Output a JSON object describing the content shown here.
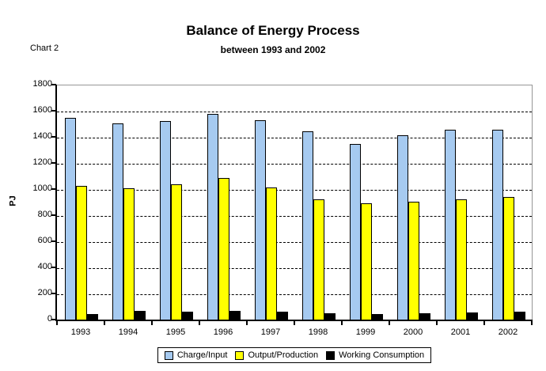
{
  "header": {
    "chart_label": "Chart 2",
    "title": "Balance of Energy Process",
    "subtitle": "between 1993 and 2002"
  },
  "chart_data": {
    "type": "bar",
    "title": "Balance of Energy Process",
    "subtitle": "between 1993 and 2002",
    "xlabel": "",
    "ylabel": "PJ",
    "ylim": [
      0,
      1800
    ],
    "ytick_step": 200,
    "grid": "horizontal-dashed",
    "legend_position": "bottom",
    "plot_frame_color": "#969696",
    "categories": [
      "1993",
      "1994",
      "1995",
      "1996",
      "1997",
      "1998",
      "1999",
      "2000",
      "2001",
      "2002"
    ],
    "series": [
      {
        "name": "Charge/Input",
        "color": "#A6CAF0",
        "values": [
          1550,
          1510,
          1530,
          1580,
          1535,
          1450,
          1350,
          1420,
          1460,
          1460
        ]
      },
      {
        "name": "Output/Production",
        "color": "#FFFF00",
        "values": [
          1030,
          1010,
          1040,
          1090,
          1020,
          930,
          895,
          910,
          930,
          945
        ]
      },
      {
        "name": "Working Consumption",
        "color": "#000000",
        "values": [
          50,
          70,
          65,
          70,
          65,
          55,
          50,
          55,
          60,
          65
        ]
      }
    ]
  }
}
